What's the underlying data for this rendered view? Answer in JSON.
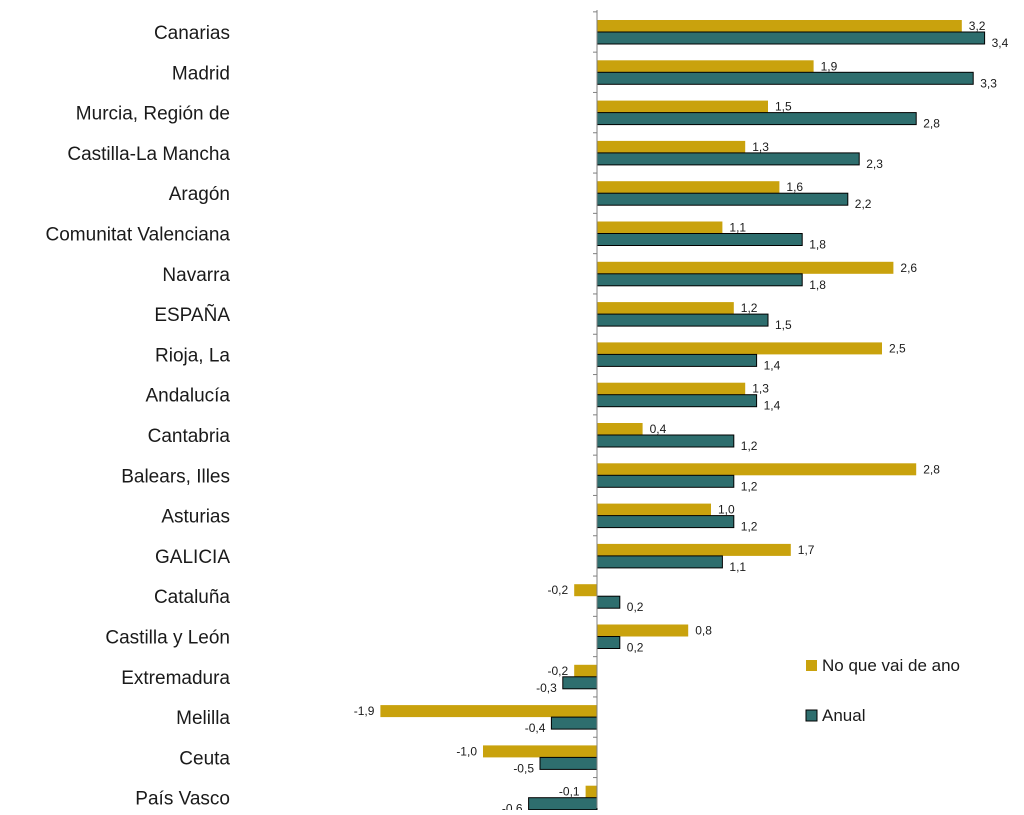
{
  "colors": {
    "ytd": "#C9A20D",
    "annual": "#2E6E6E",
    "axis": "#7F7F7F",
    "bar_outline": "#000000"
  },
  "chart_data": {
    "type": "bar",
    "orientation": "horizontal",
    "title": "",
    "xlabel": "",
    "ylabel": "",
    "xlim": [
      -2.0,
      3.6
    ],
    "grid": false,
    "legend_position": "bottom-right",
    "categories": [
      "Canarias",
      "Madrid",
      "Murcia, Región de",
      "Castilla-La Mancha",
      "Aragón",
      "Comunitat Valenciana",
      "Navarra",
      "ESPAÑA",
      "Rioja, La",
      "Andalucía",
      "Cantabria",
      "Balears, Illes",
      "Asturias",
      "GALICIA",
      "Cataluña",
      "Castilla y León",
      "Extremadura",
      "Melilla",
      "Ceuta",
      "País Vasco"
    ],
    "series": [
      {
        "name": "No que vai de ano",
        "color_key": "ytd",
        "values": [
          3.2,
          1.9,
          1.5,
          1.3,
          1.6,
          1.1,
          2.6,
          1.2,
          2.5,
          1.3,
          0.4,
          2.8,
          1.0,
          1.7,
          -0.2,
          0.8,
          -0.2,
          -1.9,
          -1.0,
          -0.1
        ],
        "labels": [
          "3,2",
          "1,9",
          "1,5",
          "1,3",
          "1,6",
          "1,1",
          "2,6",
          "1,2",
          "2,5",
          "1,3",
          "0,4",
          "2,8",
          "1,0",
          "1,7",
          "-0,2",
          "0,8",
          "-0,2",
          "-1,9",
          "-1,0",
          "-0,1"
        ]
      },
      {
        "name": "Anual",
        "color_key": "annual",
        "values": [
          3.4,
          3.3,
          2.8,
          2.3,
          2.2,
          1.8,
          1.8,
          1.5,
          1.4,
          1.4,
          1.2,
          1.2,
          1.2,
          1.1,
          0.2,
          0.2,
          -0.3,
          -0.4,
          -0.5,
          -0.6
        ],
        "labels": [
          "3,4",
          "3,3",
          "2,8",
          "2,3",
          "2,2",
          "1,8",
          "1,8",
          "1,5",
          "1,4",
          "1,4",
          "1,2",
          "1,2",
          "1,2",
          "1,1",
          "0,2",
          "0,2",
          "-0,3",
          "-0,4",
          "-0,5",
          "-0,6"
        ]
      }
    ]
  }
}
